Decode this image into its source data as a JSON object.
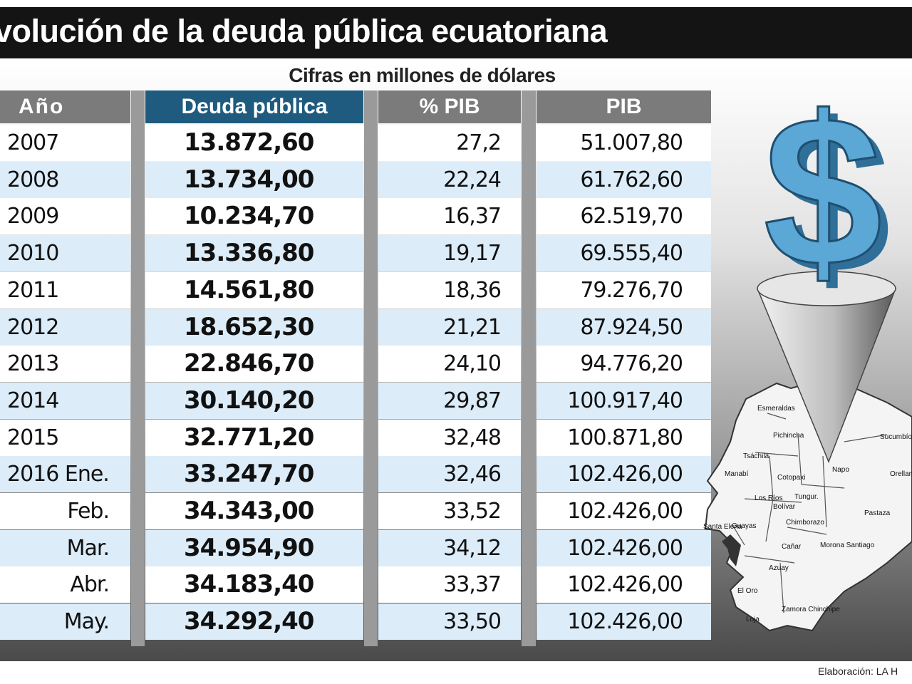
{
  "title": "volución de la deuda pública ecuatoriana",
  "subtitle": "Cifras en millones de dólares",
  "headers": {
    "anio": "Año",
    "deuda": "Deuda pública",
    "pib_pct": "% PIB",
    "pib": "PIB"
  },
  "rows": [
    {
      "anio": "2007",
      "deuda": "13.872,60",
      "pct": "27,2",
      "pib": "51.007,80"
    },
    {
      "anio": "2008",
      "deuda": "13.734,00",
      "pct": "22,24",
      "pib": "61.762,60"
    },
    {
      "anio": "2009",
      "deuda": "10.234,70",
      "pct": "16,37",
      "pib": "62.519,70"
    },
    {
      "anio": "2010",
      "deuda": "13.336,80",
      "pct": "19,17",
      "pib": "69.555,40"
    },
    {
      "anio": "2011",
      "deuda": "14.561,80",
      "pct": "18,36",
      "pib": "79.276,70"
    },
    {
      "anio": "2012",
      "deuda": "18.652,30",
      "pct": "21,21",
      "pib": "87.924,50"
    },
    {
      "anio": "2013",
      "deuda": "22.846,70",
      "pct": "24,10",
      "pib": "94.776,20"
    },
    {
      "anio": "2014",
      "deuda": "30.140,20",
      "pct": "29,87",
      "pib": "100.917,40"
    },
    {
      "anio": "2015",
      "deuda": "32.771,20",
      "pct": "32,48",
      "pib": "100.871,80"
    },
    {
      "anio": "2016  Ene.",
      "deuda": "33.247,70",
      "pct": "32,46",
      "pib": "102.426,00"
    },
    {
      "anio": "Feb.",
      "deuda": "34.343,00",
      "pct": "33,52",
      "pib": "102.426,00"
    },
    {
      "anio": "Mar.",
      "deuda": "34.954,90",
      "pct": "34,12",
      "pib": "102.426,00"
    },
    {
      "anio": "Abr.",
      "deuda": "34.183,40",
      "pct": "33,37",
      "pib": "102.426,00"
    },
    {
      "anio": "May.",
      "deuda": "34.292,40",
      "pct": "33,50",
      "pib": "102.426,00"
    }
  ],
  "map_labels": [
    "Esmeraldas",
    "Pichincha",
    "Sucumbíos",
    "Tsáchila",
    "Manabí",
    "Cotopaxi",
    "Napo",
    "Orellana",
    "Tungur.",
    "Los Ríos",
    "Bolívar",
    "Pastaza",
    "Santa Elena",
    "Guayas",
    "Chimborazo",
    "Cañar",
    "Morona Santiago",
    "Azuay",
    "El Oro",
    "Zamora Chinchipe",
    "Loja"
  ],
  "credit": "Elaboración: LA H",
  "colors": {
    "title_bg": "#141414",
    "header_gray": "#7b7b7b",
    "header_blue": "#1f5b7e",
    "row_blue": "#dcecf8",
    "dollar": "#5ba7d6"
  },
  "icons": [
    "dollar-sign-icon",
    "funnel-cone-icon",
    "ecuador-map-icon"
  ],
  "chart_data": {
    "type": "table",
    "title": "volución de la deuda pública ecuatoriana",
    "subtitle": "Cifras en millones de dólares",
    "columns": [
      "Año",
      "Deuda pública",
      "% PIB",
      "PIB"
    ],
    "categories": [
      "2007",
      "2008",
      "2009",
      "2010",
      "2011",
      "2012",
      "2013",
      "2014",
      "2015",
      "2016 Ene.",
      "Feb.",
      "Mar.",
      "Abr.",
      "May."
    ],
    "series": [
      {
        "name": "Deuda pública",
        "values": [
          13872.6,
          13734.0,
          10234.7,
          13336.8,
          14561.8,
          18652.3,
          22846.7,
          30140.2,
          32771.2,
          33247.7,
          34343.0,
          34954.9,
          34183.4,
          34292.4
        ]
      },
      {
        "name": "% PIB",
        "values": [
          27.2,
          22.24,
          16.37,
          19.17,
          18.36,
          21.21,
          24.1,
          29.87,
          32.48,
          32.46,
          33.52,
          34.12,
          33.37,
          33.5
        ]
      },
      {
        "name": "PIB",
        "values": [
          51007.8,
          61762.6,
          62519.7,
          69555.4,
          79276.7,
          87924.5,
          94776.2,
          100917.4,
          100871.8,
          102426.0,
          102426.0,
          102426.0,
          102426.0,
          102426.0
        ]
      }
    ]
  }
}
